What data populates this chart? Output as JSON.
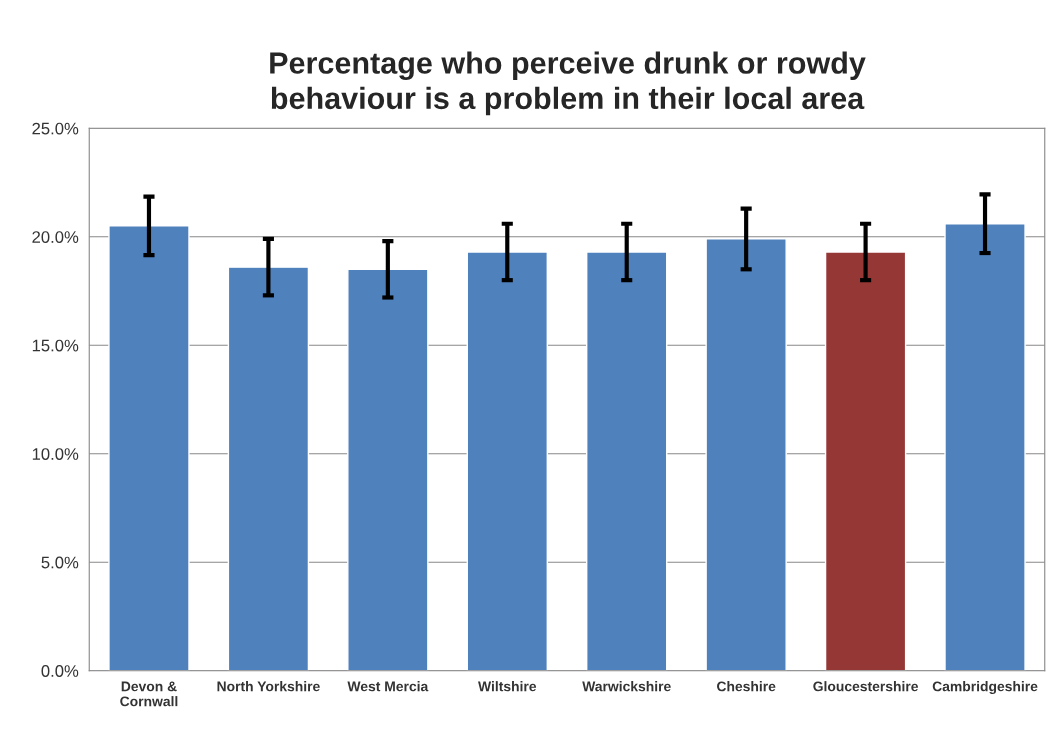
{
  "chart_data": {
    "type": "bar",
    "title": "Percentage who perceive drunk or rowdy\nbehaviour is a problem in their local area",
    "categories": [
      "Devon &\nCornwall",
      "North Yorkshire",
      "West Mercia",
      "Wiltshire",
      "Warwickshire",
      "Cheshire",
      "Gloucestershire",
      "Cambridgeshire"
    ],
    "values": [
      20.5,
      18.6,
      18.5,
      19.3,
      19.3,
      19.9,
      19.3,
      20.6
    ],
    "errors": [
      1.35,
      1.3,
      1.3,
      1.3,
      1.3,
      1.4,
      1.3,
      1.35
    ],
    "colors": [
      "#4f81bd",
      "#4f81bd",
      "#4f81bd",
      "#4f81bd",
      "#4f81bd",
      "#4f81bd",
      "#953735",
      "#4f81bd"
    ],
    "ylim": [
      0,
      25
    ],
    "yticks": [
      {
        "value": 0,
        "label": "0.0%"
      },
      {
        "value": 5,
        "label": "5.0%"
      },
      {
        "value": 10,
        "label": "10.0%"
      },
      {
        "value": 15,
        "label": "15.0%"
      },
      {
        "value": 20,
        "label": "20.0%"
      },
      {
        "value": 25,
        "label": "25.0%"
      }
    ],
    "grid": "y"
  }
}
